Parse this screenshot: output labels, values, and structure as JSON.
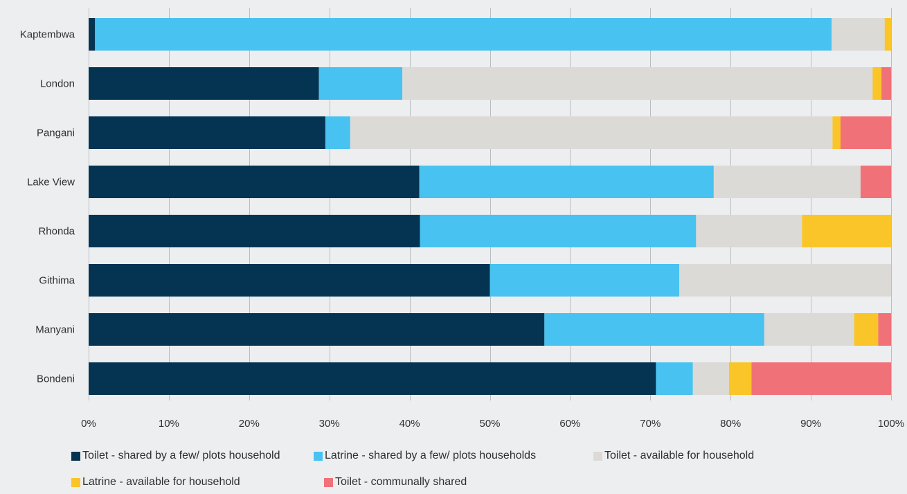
{
  "chart_data": {
    "type": "bar",
    "orientation": "horizontal",
    "stacked": true,
    "normalized": true,
    "categories": [
      "Kaptembwa",
      "London",
      "Pangani",
      "Lake View",
      "Rhonda",
      "Githima",
      "Manyani",
      "Bondeni"
    ],
    "series": [
      {
        "name": "Toilet - shared by a few/ plots household",
        "color": "#053452",
        "values": [
          0.8,
          28.7,
          29.5,
          41.2,
          41.3,
          50.0,
          56.8,
          70.7
        ]
      },
      {
        "name": "Latrine - shared by a few/ plots households",
        "color": "#48c2f0",
        "values": [
          91.8,
          10.4,
          3.1,
          36.7,
          34.4,
          23.6,
          27.4,
          4.6
        ]
      },
      {
        "name": "Toilet - available for household",
        "color": "#dcdad6",
        "values": [
          6.6,
          58.6,
          60.1,
          18.3,
          13.2,
          26.4,
          11.2,
          4.5
        ]
      },
      {
        "name": "Latrine - available for household",
        "color": "#fac528",
        "values": [
          0.8,
          1.1,
          1.0,
          0.0,
          11.1,
          0.0,
          3.0,
          2.8
        ]
      },
      {
        "name": "Toilet - communally shared",
        "color": "#f17178",
        "values": [
          0.0,
          1.2,
          6.3,
          3.8,
          0.0,
          0.0,
          1.6,
          17.4
        ]
      }
    ],
    "xlim": [
      0,
      100
    ],
    "xticks": [
      "0%",
      "10%",
      "20%",
      "30%",
      "40%",
      "50%",
      "60%",
      "70%",
      "80%",
      "90%",
      "100%"
    ],
    "grid": "vertical",
    "legend_position": "bottom"
  }
}
